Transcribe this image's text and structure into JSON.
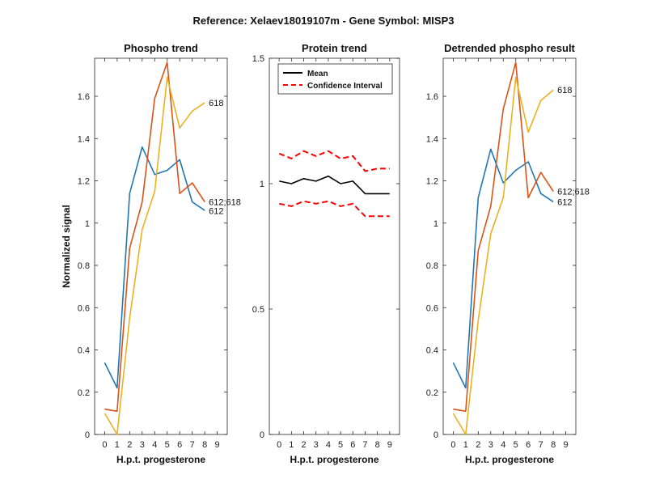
{
  "figure_title": "Reference:  Xelaev18019107m - Gene Symbol:  MISP3",
  "colors": {
    "s612": "#1f77b4",
    "s612_618": "#d95319",
    "s618": "#edb120",
    "mean": "#000000",
    "ci": "#ff0000"
  },
  "chart_data": [
    {
      "type": "line",
      "title": "Phospho trend",
      "xlabel": "H.p.t. progesterone",
      "ylabel": "Normalized signal",
      "x": [
        0,
        1,
        2,
        3,
        4,
        5,
        6,
        7,
        8,
        9
      ],
      "xlim": [
        -0.8,
        9.8
      ],
      "ylim": [
        0,
        1.78
      ],
      "yticks": [
        "0",
        "0.2",
        "0.4",
        "0.6",
        "0.8",
        "1",
        "1.2",
        "1.4",
        "1.6"
      ],
      "series": [
        {
          "name": "612",
          "color_key": "s612",
          "values": [
            0.34,
            0.22,
            1.14,
            1.36,
            1.23,
            1.25,
            1.3,
            1.1,
            1.06,
            null
          ]
        },
        {
          "name": "612;618",
          "color_key": "s612_618",
          "values": [
            0.12,
            0.11,
            0.88,
            1.1,
            1.59,
            1.76,
            1.14,
            1.19,
            1.1,
            null
          ]
        },
        {
          "name": "618",
          "color_key": "s618",
          "values": [
            0.1,
            0.0,
            0.55,
            0.97,
            1.15,
            1.69,
            1.45,
            1.53,
            1.57,
            null
          ]
        }
      ],
      "end_labels": [
        "618",
        "612;618",
        "612"
      ]
    },
    {
      "type": "line",
      "title": "Protein trend",
      "xlabel": "H.p.t. progesterone",
      "ylabel": "",
      "x": [
        0,
        1,
        2,
        3,
        4,
        5,
        6,
        7,
        8,
        9
      ],
      "xlim": [
        -0.8,
        9.8
      ],
      "ylim": [
        0,
        1.5
      ],
      "yticks": [
        "0",
        "0.5",
        "1",
        "1.5"
      ],
      "series": [
        {
          "name": "Mean",
          "color_key": "mean",
          "dashed": false,
          "values": [
            1.01,
            1.0,
            1.02,
            1.01,
            1.03,
            1.0,
            1.01,
            0.96,
            0.96,
            0.96
          ]
        },
        {
          "name": "Confidence Interval",
          "color_key": "ci",
          "dashed": true,
          "values": [
            1.12,
            1.1,
            1.13,
            1.11,
            1.13,
            1.1,
            1.11,
            1.05,
            1.06,
            1.06
          ]
        },
        {
          "name": "",
          "color_key": "ci",
          "dashed": true,
          "values": [
            0.92,
            0.91,
            0.93,
            0.92,
            0.93,
            0.91,
            0.92,
            0.87,
            0.87,
            0.87
          ]
        }
      ],
      "legend": {
        "position": "top-left",
        "entries": [
          "Mean",
          "Confidence Interval"
        ]
      }
    },
    {
      "type": "line",
      "title": "Detrended phospho result",
      "xlabel": "H.p.t. progesterone",
      "ylabel": "",
      "x": [
        0,
        1,
        2,
        3,
        4,
        5,
        6,
        7,
        8,
        9
      ],
      "xlim": [
        -0.8,
        9.8
      ],
      "ylim": [
        0,
        1.78
      ],
      "yticks": [
        "0",
        "0.2",
        "0.4",
        "0.6",
        "0.8",
        "1",
        "1.2",
        "1.4",
        "1.6"
      ],
      "series": [
        {
          "name": "612",
          "color_key": "s612",
          "values": [
            0.34,
            0.22,
            1.12,
            1.35,
            1.19,
            1.25,
            1.29,
            1.14,
            1.1,
            null
          ]
        },
        {
          "name": "612;618",
          "color_key": "s612_618",
          "values": [
            0.12,
            0.11,
            0.87,
            1.08,
            1.54,
            1.76,
            1.12,
            1.24,
            1.15,
            null
          ]
        },
        {
          "name": "618",
          "color_key": "s618",
          "values": [
            0.1,
            0.0,
            0.54,
            0.95,
            1.12,
            1.69,
            1.43,
            1.58,
            1.63,
            null
          ]
        }
      ],
      "end_labels": [
        "618",
        "612;618",
        "612"
      ]
    }
  ]
}
